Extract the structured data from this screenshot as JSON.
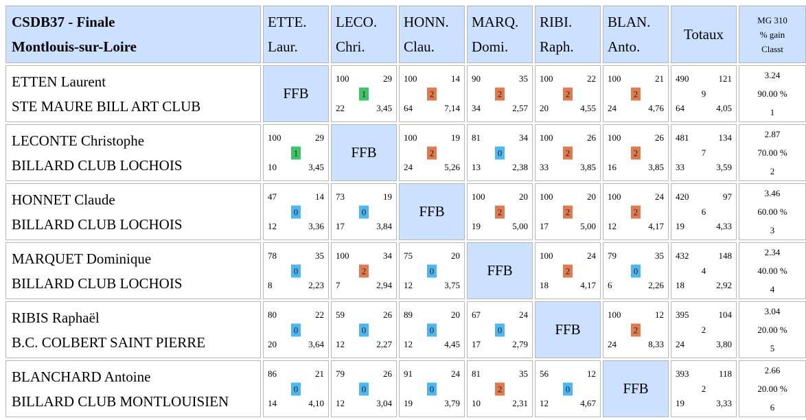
{
  "header": {
    "title_line1": "CSDB37 - Finale",
    "title_line2": "Montlouis-sur-Loire",
    "columns": [
      {
        "l1": "ETTE.",
        "l2": "Laur."
      },
      {
        "l1": "LECO.",
        "l2": "Chri."
      },
      {
        "l1": "HONN.",
        "l2": "Clau."
      },
      {
        "l1": "MARQ.",
        "l2": "Domi."
      },
      {
        "l1": "RIBI.",
        "l2": "Raph."
      },
      {
        "l1": "BLAN.",
        "l2": "Anto."
      }
    ],
    "totals": "Totaux",
    "mg_line1": "MG 310",
    "mg_line2": "% gain",
    "mg_line3": "Classt"
  },
  "ffb": "FFB",
  "rows": [
    {
      "name": "ETTEN Laurent",
      "club": "STE MAURE BILL ART CLUB",
      "matches": [
        null,
        {
          "pts": "100",
          "rep": "29",
          "res": "1",
          "r": "draw",
          "ser": "22",
          "moy": "3,45"
        },
        {
          "pts": "100",
          "rep": "14",
          "res": "2",
          "r": "win",
          "ser": "64",
          "moy": "7,14"
        },
        {
          "pts": "90",
          "rep": "35",
          "res": "2",
          "r": "win",
          "ser": "34",
          "moy": "2,57"
        },
        {
          "pts": "100",
          "rep": "22",
          "res": "2",
          "r": "win",
          "ser": "20",
          "moy": "4,55"
        },
        {
          "pts": "100",
          "rep": "21",
          "res": "2",
          "r": "win",
          "ser": "24",
          "moy": "4,76"
        }
      ],
      "totals": {
        "pts": "490",
        "rep": "121",
        "mid": "9",
        "ser": "64",
        "moy": "4,05"
      },
      "mg": "3.24",
      "gain": "90.00 %",
      "rank": "1"
    },
    {
      "name": "LECONTE Christophe",
      "club": "BILLARD CLUB LOCHOIS",
      "matches": [
        {
          "pts": "100",
          "rep": "29",
          "res": "1",
          "r": "draw",
          "ser": "10",
          "moy": "3,45"
        },
        null,
        {
          "pts": "100",
          "rep": "19",
          "res": "2",
          "r": "win",
          "ser": "24",
          "moy": "5,26"
        },
        {
          "pts": "81",
          "rep": "34",
          "res": "0",
          "r": "loss",
          "ser": "13",
          "moy": "2,38"
        },
        {
          "pts": "100",
          "rep": "26",
          "res": "2",
          "r": "win",
          "ser": "33",
          "moy": "3,85"
        },
        {
          "pts": "100",
          "rep": "26",
          "res": "2",
          "r": "win",
          "ser": "16",
          "moy": "3,85"
        }
      ],
      "totals": {
        "pts": "481",
        "rep": "134",
        "mid": "7",
        "ser": "33",
        "moy": "3,59"
      },
      "mg": "2.87",
      "gain": "70.00 %",
      "rank": "2"
    },
    {
      "name": "HONNET Claude",
      "club": "BILLARD CLUB LOCHOIS",
      "matches": [
        {
          "pts": "47",
          "rep": "14",
          "res": "0",
          "r": "loss",
          "ser": "12",
          "moy": "3,36"
        },
        {
          "pts": "73",
          "rep": "19",
          "res": "0",
          "r": "loss",
          "ser": "17",
          "moy": "3,84"
        },
        null,
        {
          "pts": "100",
          "rep": "20",
          "res": "2",
          "r": "win",
          "ser": "19",
          "moy": "5,00"
        },
        {
          "pts": "100",
          "rep": "20",
          "res": "2",
          "r": "win",
          "ser": "17",
          "moy": "5,00"
        },
        {
          "pts": "100",
          "rep": "24",
          "res": "2",
          "r": "win",
          "ser": "12",
          "moy": "4,17"
        }
      ],
      "totals": {
        "pts": "420",
        "rep": "97",
        "mid": "6",
        "ser": "19",
        "moy": "4,33"
      },
      "mg": "3.46",
      "gain": "60.00 %",
      "rank": "3"
    },
    {
      "name": "MARQUET Dominique",
      "club": "BILLARD CLUB LOCHOIS",
      "matches": [
        {
          "pts": "78",
          "rep": "35",
          "res": "0",
          "r": "loss",
          "ser": "8",
          "moy": "2,23"
        },
        {
          "pts": "100",
          "rep": "34",
          "res": "2",
          "r": "win",
          "ser": "7",
          "moy": "2,94"
        },
        {
          "pts": "75",
          "rep": "20",
          "res": "0",
          "r": "loss",
          "ser": "12",
          "moy": "3,75"
        },
        null,
        {
          "pts": "100",
          "rep": "24",
          "res": "2",
          "r": "win",
          "ser": "18",
          "moy": "4,17"
        },
        {
          "pts": "79",
          "rep": "35",
          "res": "0",
          "r": "loss",
          "ser": "6",
          "moy": "2,26"
        }
      ],
      "totals": {
        "pts": "432",
        "rep": "148",
        "mid": "4",
        "ser": "18",
        "moy": "2,92"
      },
      "mg": "2.34",
      "gain": "40.00 %",
      "rank": "4"
    },
    {
      "name": "RIBIS Raphaël",
      "club": "B.C. COLBERT SAINT PIERRE",
      "matches": [
        {
          "pts": "80",
          "rep": "22",
          "res": "0",
          "r": "loss",
          "ser": "20",
          "moy": "3,64"
        },
        {
          "pts": "59",
          "rep": "26",
          "res": "0",
          "r": "loss",
          "ser": "12",
          "moy": "2,27"
        },
        {
          "pts": "89",
          "rep": "20",
          "res": "0",
          "r": "loss",
          "ser": "12",
          "moy": "4,45"
        },
        {
          "pts": "67",
          "rep": "24",
          "res": "0",
          "r": "loss",
          "ser": "17",
          "moy": "2,79"
        },
        null,
        {
          "pts": "100",
          "rep": "12",
          "res": "2",
          "r": "win",
          "ser": "24",
          "moy": "8,33"
        }
      ],
      "totals": {
        "pts": "395",
        "rep": "104",
        "mid": "2",
        "ser": "24",
        "moy": "3,80"
      },
      "mg": "3.04",
      "gain": "20.00 %",
      "rank": "5"
    },
    {
      "name": "BLANCHARD Antoine",
      "club": "BILLARD CLUB MONTLOUISIEN",
      "matches": [
        {
          "pts": "86",
          "rep": "21",
          "res": "0",
          "r": "loss",
          "ser": "14",
          "moy": "4,10"
        },
        {
          "pts": "79",
          "rep": "26",
          "res": "0",
          "r": "loss",
          "ser": "12",
          "moy": "3,04"
        },
        {
          "pts": "91",
          "rep": "24",
          "res": "0",
          "r": "loss",
          "ser": "19",
          "moy": "3,79"
        },
        {
          "pts": "81",
          "rep": "35",
          "res": "2",
          "r": "win",
          "ser": "10",
          "moy": "2,31"
        },
        {
          "pts": "56",
          "rep": "12",
          "res": "0",
          "r": "loss",
          "ser": "12",
          "moy": "4,67"
        },
        null
      ],
      "totals": {
        "pts": "393",
        "rep": "118",
        "mid": "2",
        "ser": "19",
        "moy": "3,33"
      },
      "mg": "2.66",
      "gain": "20.00 %",
      "rank": "6"
    }
  ],
  "colors": {
    "header_bg": "#cce0ff",
    "result_win": "#e07a50",
    "result_loss": "#4fb6f0",
    "result_draw": "#3fc36a"
  }
}
